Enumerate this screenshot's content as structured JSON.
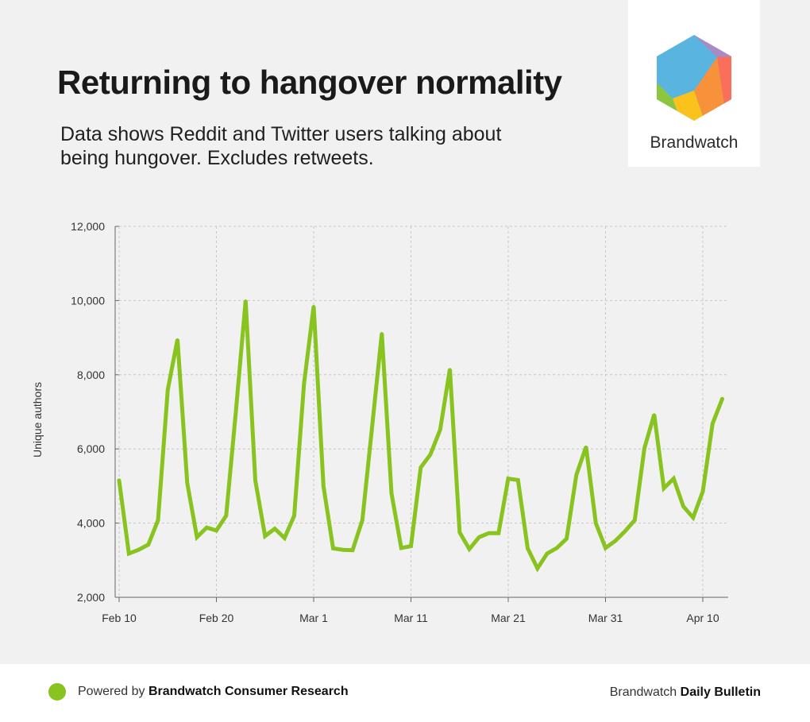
{
  "header": {
    "title": "Returning to hangover normality",
    "subtitle": "Data shows Reddit and Twitter users talking about being hungover. Excludes retweets."
  },
  "logo": {
    "text": "Brandwatch"
  },
  "footer": {
    "powered_prefix": "Powered by",
    "powered_brand": "Brandwatch Consumer Research",
    "bulletin_prefix": "Brandwatch",
    "bulletin_bold": "Daily Bulletin",
    "dot_color": "#88c31f"
  },
  "chart_data": {
    "type": "line",
    "title": "",
    "xlabel": "",
    "ylabel": "Unique authors",
    "ylim": [
      2000,
      12000
    ],
    "yticks": [
      2000,
      4000,
      6000,
      8000,
      10000,
      12000
    ],
    "ytick_labels": [
      "2,000",
      "4,000",
      "6,000",
      "8,000",
      "10,000",
      "12,000"
    ],
    "xticks": [
      {
        "label": "Feb 10",
        "day": 0
      },
      {
        "label": "Feb 20",
        "day": 10
      },
      {
        "label": "Mar 1",
        "day": 20
      },
      {
        "label": "Mar 11",
        "day": 30
      },
      {
        "label": "Mar 21",
        "day": 40
      },
      {
        "label": "Mar 31",
        "day": 50
      },
      {
        "label": "Apr 10",
        "day": 60
      }
    ],
    "x_start": "Feb 10",
    "x_end": "Apr 12",
    "grid": true,
    "line_color": "#88c31f",
    "series": [
      {
        "values": [
          5150,
          3180,
          3280,
          3420,
          4080,
          7600,
          8950,
          5080,
          3620,
          3880,
          3800,
          4200,
          7000,
          10000,
          5150,
          3650,
          3850,
          3600,
          4200,
          7750,
          9850,
          5000,
          3320,
          3280,
          3270,
          4080,
          6580,
          9120,
          4800,
          3330,
          3380,
          5500,
          5850,
          6520,
          8150,
          3750,
          3300,
          3620,
          3730,
          3730,
          5200,
          5160,
          3320,
          2780,
          3180,
          3330,
          3580,
          5300,
          6060,
          4000,
          3330,
          3520,
          3780,
          4080,
          6020,
          6930,
          4940,
          5200,
          4450,
          4150,
          4850,
          6680,
          7350
        ]
      }
    ]
  }
}
